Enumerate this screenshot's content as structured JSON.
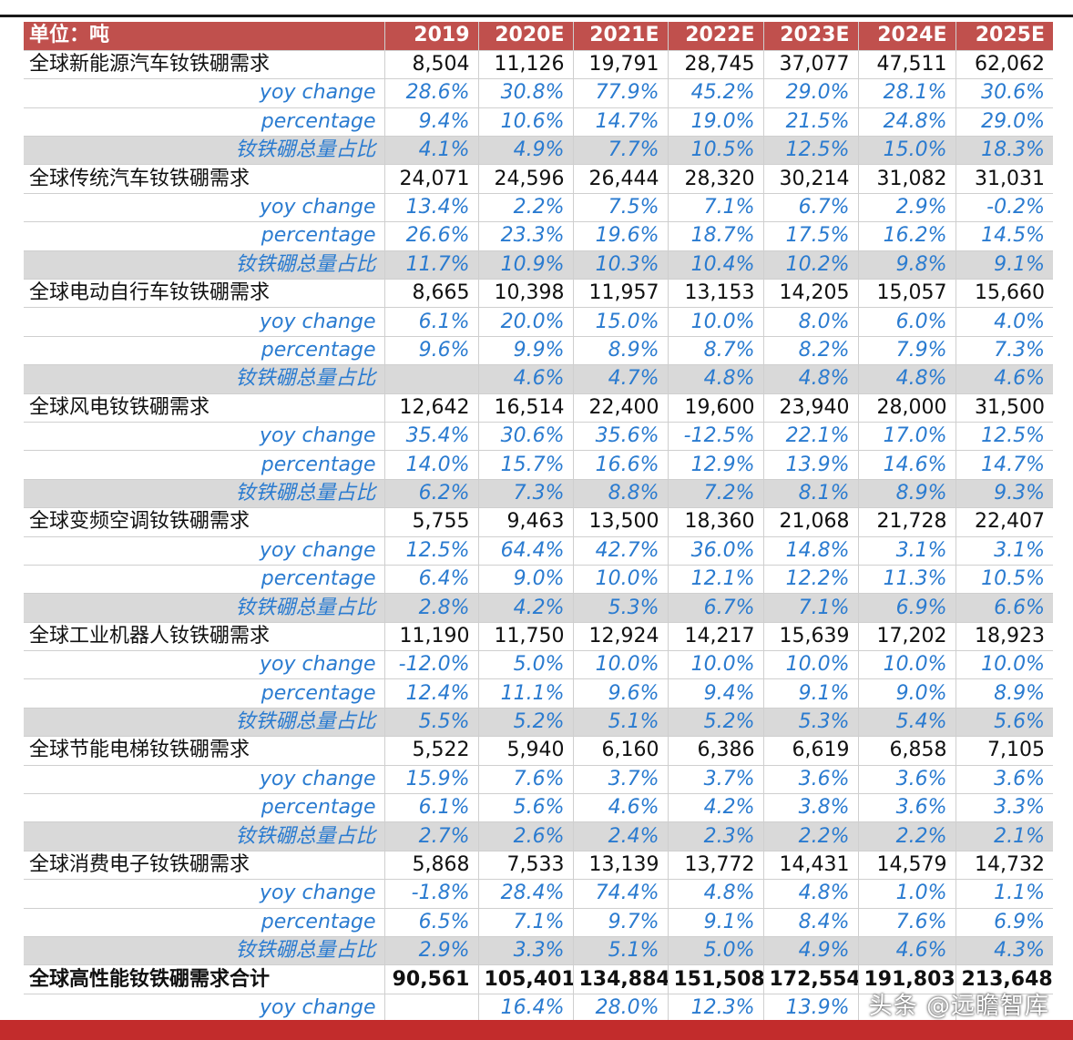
{
  "table": {
    "header": [
      "单位：吨",
      "2019",
      "2020E",
      "2021E",
      "2022E",
      "2023E",
      "2024E",
      "2025E"
    ],
    "sections": [
      {
        "name": "全球新能源汽车钕铁硼需求",
        "values": [
          "8,504",
          "11,126",
          "19,791",
          "28,745",
          "37,077",
          "47,511",
          "62,062"
        ],
        "rows": [
          {
            "label": "yoy change",
            "values": [
              "28.6%",
              "30.8%",
              "77.9%",
              "45.2%",
              "29.0%",
              "28.1%",
              "30.6%"
            ]
          },
          {
            "label": "percentage",
            "values": [
              "9.4%",
              "10.6%",
              "14.7%",
              "19.0%",
              "21.5%",
              "24.8%",
              "29.0%"
            ]
          },
          {
            "label": "钕铁硼总量占比",
            "values": [
              "4.1%",
              "4.9%",
              "7.7%",
              "10.5%",
              "12.5%",
              "15.0%",
              "18.3%"
            ]
          }
        ]
      },
      {
        "name": "全球传统汽车钕铁硼需求",
        "values": [
          "24,071",
          "24,596",
          "26,444",
          "28,320",
          "30,214",
          "31,082",
          "31,031"
        ],
        "rows": [
          {
            "label": "yoy change",
            "values": [
              "13.4%",
              "2.2%",
              "7.5%",
              "7.1%",
              "6.7%",
              "2.9%",
              "-0.2%"
            ]
          },
          {
            "label": "percentage",
            "values": [
              "26.6%",
              "23.3%",
              "19.6%",
              "18.7%",
              "17.5%",
              "16.2%",
              "14.5%"
            ]
          },
          {
            "label": "钕铁硼总量占比",
            "values": [
              "11.7%",
              "10.9%",
              "10.3%",
              "10.4%",
              "10.2%",
              "9.8%",
              "9.1%"
            ]
          }
        ]
      },
      {
        "name": "全球电动自行车钕铁硼需求",
        "values": [
          "8,665",
          "10,398",
          "11,957",
          "13,153",
          "14,205",
          "15,057",
          "15,660"
        ],
        "rows": [
          {
            "label": "yoy change",
            "values": [
              "6.1%",
              "20.0%",
              "15.0%",
              "10.0%",
              "8.0%",
              "6.0%",
              "4.0%"
            ]
          },
          {
            "label": "percentage",
            "values": [
              "9.6%",
              "9.9%",
              "8.9%",
              "8.7%",
              "8.2%",
              "7.9%",
              "7.3%"
            ]
          },
          {
            "label": "钕铁硼总量占比",
            "values": [
              "",
              "4.6%",
              "4.7%",
              "4.8%",
              "4.8%",
              "4.8%",
              "4.6%"
            ]
          }
        ]
      },
      {
        "name": "全球风电钕铁硼需求",
        "values": [
          "12,642",
          "16,514",
          "22,400",
          "19,600",
          "23,940",
          "28,000",
          "31,500"
        ],
        "rows": [
          {
            "label": "yoy change",
            "values": [
              "35.4%",
              "30.6%",
              "35.6%",
              "-12.5%",
              "22.1%",
              "17.0%",
              "12.5%"
            ]
          },
          {
            "label": "percentage",
            "values": [
              "14.0%",
              "15.7%",
              "16.6%",
              "12.9%",
              "13.9%",
              "14.6%",
              "14.7%"
            ]
          },
          {
            "label": "钕铁硼总量占比",
            "values": [
              "6.2%",
              "7.3%",
              "8.8%",
              "7.2%",
              "8.1%",
              "8.9%",
              "9.3%"
            ]
          }
        ]
      },
      {
        "name": "全球变频空调钕铁硼需求",
        "values": [
          "5,755",
          "9,463",
          "13,500",
          "18,360",
          "21,068",
          "21,728",
          "22,407"
        ],
        "rows": [
          {
            "label": "yoy change",
            "values": [
              "12.5%",
              "64.4%",
              "42.7%",
              "36.0%",
              "14.8%",
              "3.1%",
              "3.1%"
            ]
          },
          {
            "label": "percentage",
            "values": [
              "6.4%",
              "9.0%",
              "10.0%",
              "12.1%",
              "12.2%",
              "11.3%",
              "10.5%"
            ]
          },
          {
            "label": "钕铁硼总量占比",
            "values": [
              "2.8%",
              "4.2%",
              "5.3%",
              "6.7%",
              "7.1%",
              "6.9%",
              "6.6%"
            ]
          }
        ]
      },
      {
        "name": "全球工业机器人钕铁硼需求",
        "values": [
          "11,190",
          "11,750",
          "12,924",
          "14,217",
          "15,639",
          "17,202",
          "18,923"
        ],
        "rows": [
          {
            "label": "yoy change",
            "values": [
              "-12.0%",
              "5.0%",
              "10.0%",
              "10.0%",
              "10.0%",
              "10.0%",
              "10.0%"
            ]
          },
          {
            "label": "percentage",
            "values": [
              "12.4%",
              "11.1%",
              "9.6%",
              "9.4%",
              "9.1%",
              "9.0%",
              "8.9%"
            ]
          },
          {
            "label": "钕铁硼总量占比",
            "values": [
              "5.5%",
              "5.2%",
              "5.1%",
              "5.2%",
              "5.3%",
              "5.4%",
              "5.6%"
            ]
          }
        ]
      },
      {
        "name": "全球节能电梯钕铁硼需求",
        "values": [
          "5,522",
          "5,940",
          "6,160",
          "6,386",
          "6,619",
          "6,858",
          "7,105"
        ],
        "rows": [
          {
            "label": "yoy change",
            "values": [
              "15.9%",
              "7.6%",
              "3.7%",
              "3.7%",
              "3.6%",
              "3.6%",
              "3.6%"
            ]
          },
          {
            "label": "percentage",
            "values": [
              "6.1%",
              "5.6%",
              "4.6%",
              "4.2%",
              "3.8%",
              "3.6%",
              "3.3%"
            ]
          },
          {
            "label": "钕铁硼总量占比",
            "values": [
              "2.7%",
              "2.6%",
              "2.4%",
              "2.3%",
              "2.2%",
              "2.2%",
              "2.1%"
            ]
          }
        ]
      },
      {
        "name": "全球消费电子钕铁硼需求",
        "values": [
          "5,868",
          "7,533",
          "13,139",
          "13,772",
          "14,431",
          "14,579",
          "14,732"
        ],
        "rows": [
          {
            "label": "yoy change",
            "values": [
              "-1.8%",
              "28.4%",
              "74.4%",
              "4.8%",
              "4.8%",
              "1.0%",
              "1.1%"
            ]
          },
          {
            "label": "percentage",
            "values": [
              "6.5%",
              "7.1%",
              "9.7%",
              "9.1%",
              "8.4%",
              "7.6%",
              "6.9%"
            ]
          },
          {
            "label": "钕铁硼总量占比",
            "values": [
              "2.9%",
              "3.3%",
              "5.1%",
              "5.0%",
              "4.9%",
              "4.6%",
              "4.3%"
            ]
          }
        ]
      }
    ],
    "total": {
      "name": "全球高性能钕铁硼需求合计",
      "values": [
        "90,561",
        "105,401",
        "134,884",
        "151,508",
        "172,554",
        "191,803",
        "213,648"
      ],
      "yoy": {
        "label": "yoy change",
        "values": [
          "",
          "16.4%",
          "28.0%",
          "12.3%",
          "13.9%",
          "",
          ""
        ]
      }
    }
  },
  "watermark": "头条 @远瞻智库"
}
